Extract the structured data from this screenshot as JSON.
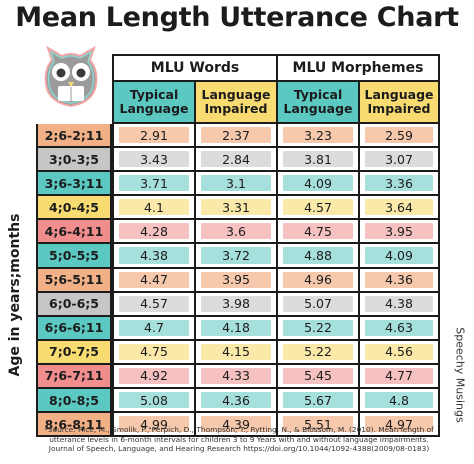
{
  "title": "Mean Length Utterance Chart",
  "y_axis_label": "Age in years;months",
  "side_credit": "Speechy Musings",
  "source": "*Source: Rice, M., Smolik, F., Perpich, D., Thompson, T., Rytting, N., & Blossom, M. (2010). Mean length of utterance levels in 6-month intervals for children 3 to 9 Years with and without language impairments. Journal of Speech, Language, and Hearing Research https://doi.org/10.1044/1092-4388(2009/08-0183)",
  "groups": [
    "MLU Words",
    "MLU Morphemes"
  ],
  "subheaders": [
    "Typical Language",
    "Language Impaired",
    "Typical Language",
    "Language Impaired"
  ],
  "colors": {
    "teal": "#5cc8c2",
    "yellow": "#f8dc72",
    "orange": "#f2b087",
    "gray": "#c6c6c6",
    "pink": "#f08d8d",
    "peach": "#f6c9ac",
    "light_gray": "#dcdcdc",
    "light_yellow": "#fae9a8",
    "light_pink": "#f6c1c1",
    "light_teal": "#a6e0dc"
  },
  "rows": [
    {
      "age": "2;6-2;11",
      "tone": "orange",
      "values": [
        "2.91",
        "2.37",
        "3.23",
        "2.59"
      ]
    },
    {
      "age": "3;0-3;5",
      "tone": "gray",
      "values": [
        "3.43",
        "2.84",
        "3.81",
        "3.07"
      ]
    },
    {
      "age": "3;6-3;11",
      "tone": "teal",
      "values": [
        "3.71",
        "3.1",
        "4.09",
        "3.36"
      ]
    },
    {
      "age": "4;0-4;5",
      "tone": "yellow",
      "values": [
        "4.1",
        "3.31",
        "4.57",
        "3.64"
      ]
    },
    {
      "age": "4;6-4;11",
      "tone": "pink",
      "values": [
        "4.28",
        "3.6",
        "4.75",
        "3.95"
      ]
    },
    {
      "age": "5;0-5;5",
      "tone": "teal",
      "values": [
        "4.38",
        "3.72",
        "4.88",
        "4.09"
      ]
    },
    {
      "age": "5;6-5;11",
      "tone": "orange",
      "values": [
        "4.47",
        "3.95",
        "4.96",
        "4.36"
      ]
    },
    {
      "age": "6;0-6;5",
      "tone": "gray",
      "values": [
        "4.57",
        "3.98",
        "5.07",
        "4.38"
      ]
    },
    {
      "age": "6;6-6;11",
      "tone": "teal",
      "values": [
        "4.7",
        "4.18",
        "5.22",
        "4.63"
      ]
    },
    {
      "age": "7;0-7;5",
      "tone": "yellow",
      "values": [
        "4.75",
        "4.15",
        "5.22",
        "4.56"
      ]
    },
    {
      "age": "7;6-7;11",
      "tone": "pink",
      "values": [
        "4.92",
        "4.33",
        "5.45",
        "4.77"
      ]
    },
    {
      "age": "8;0-8;5",
      "tone": "teal",
      "values": [
        "5.08",
        "4.36",
        "5.67",
        "4.8"
      ]
    },
    {
      "age": "8;6-8;11",
      "tone": "orange",
      "values": [
        "4.99",
        "4.39",
        "5.51",
        "4.97"
      ]
    }
  ]
}
